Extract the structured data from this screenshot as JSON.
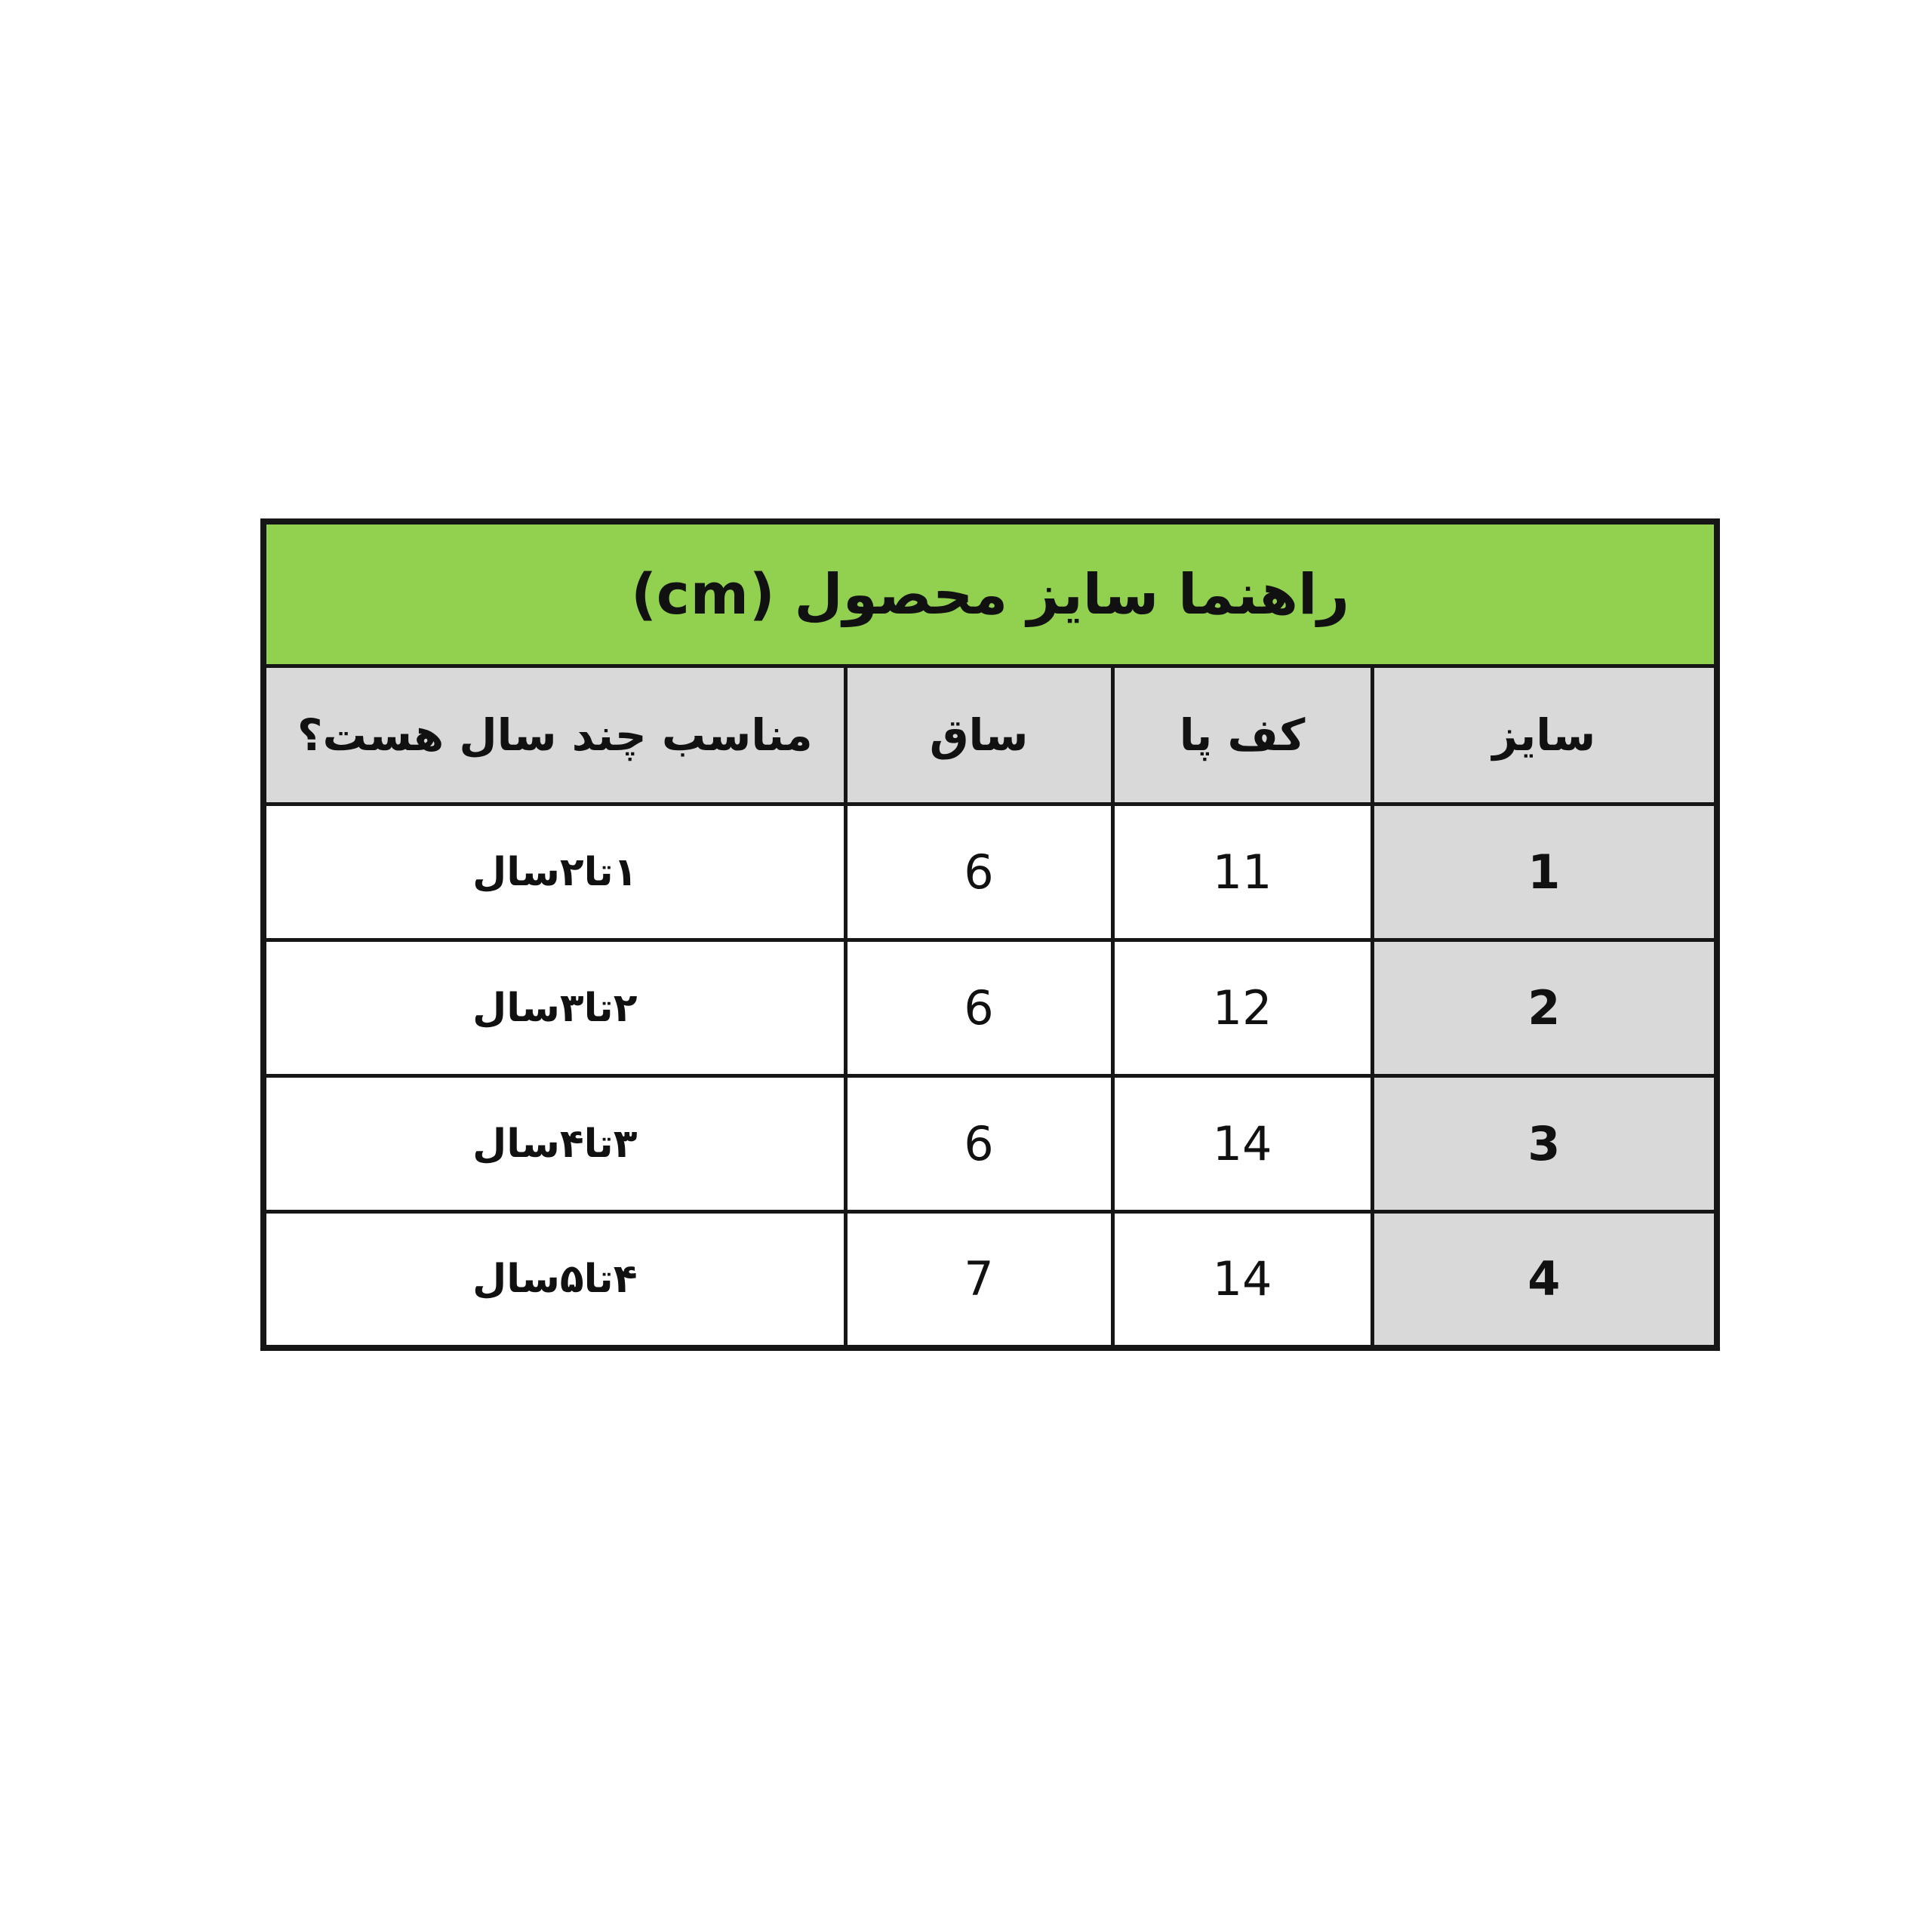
{
  "page": {
    "background": "#ffffff"
  },
  "chart_data": {
    "type": "table",
    "title": "راهنما سایز محصول (cm)",
    "unit": "cm",
    "direction": "rtl",
    "columns": [
      "سایز",
      "کف پا",
      "ساق",
      "مناسب چند سال هست؟"
    ],
    "rows": [
      [
        "1",
        "11",
        "6",
        "۱تا۲سال"
      ],
      [
        "2",
        "12",
        "6",
        "۲تا۳سال"
      ],
      [
        "3",
        "14",
        "6",
        "۳تا۴سال"
      ],
      [
        "4",
        "14",
        "7",
        "۴تا۵سال"
      ]
    ]
  },
  "colors": {
    "title_bg": "#92d050",
    "header_bg": "#d9d9d9",
    "size_column_bg": "#d9d9d9",
    "cell_bg": "#ffffff",
    "border": "#161616",
    "text": "#111111"
  }
}
